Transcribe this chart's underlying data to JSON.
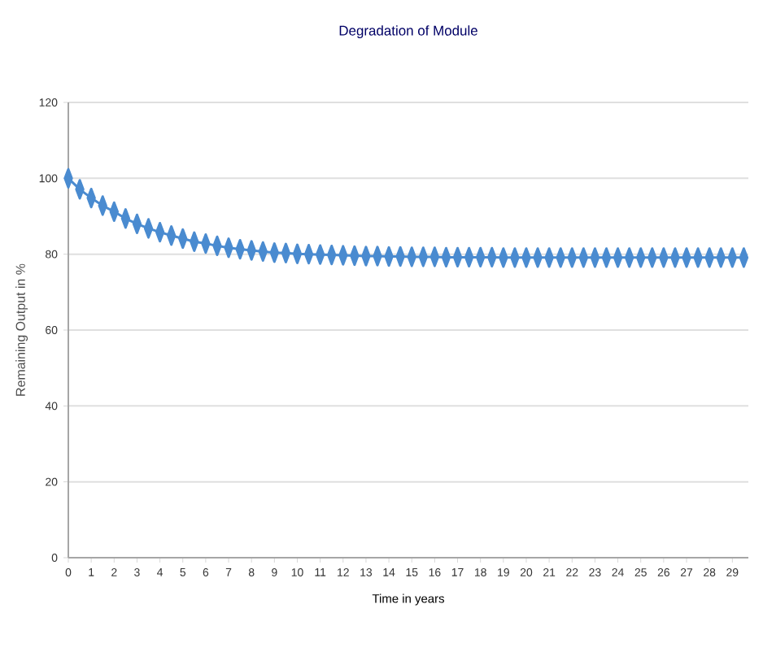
{
  "chart_data": {
    "type": "line",
    "title": "Degradation of Module",
    "xlabel": "Time in years",
    "ylabel": "Remaining Output in %",
    "x": [
      0,
      0.5,
      1,
      1.5,
      2,
      2.5,
      3,
      3.5,
      4,
      4.5,
      5,
      5.5,
      6,
      6.5,
      7,
      7.5,
      8,
      8.5,
      9,
      9.5,
      10,
      10.5,
      11,
      11.5,
      12,
      12.5,
      13,
      13.5,
      14,
      14.5,
      15,
      15.5,
      16,
      16.5,
      17,
      17.5,
      18,
      18.5,
      19,
      19.5,
      20,
      20.5,
      21,
      21.5,
      22,
      22.5,
      23,
      23.5,
      24,
      24.5,
      25,
      25.5,
      26,
      26.5,
      27,
      27.5,
      28,
      28.5,
      29,
      29.5
    ],
    "series": [
      {
        "color": "#4a8bd0",
        "values": [
          100,
          97.1,
          94.8,
          92.8,
          91.2,
          89.4,
          88.0,
          86.8,
          85.8,
          84.9,
          84.1,
          83.3,
          82.8,
          82.2,
          81.7,
          81.3,
          81.0,
          80.7,
          80.4,
          80.3,
          80.1,
          80.0,
          79.9,
          79.8,
          79.7,
          79.6,
          79.5,
          79.5,
          79.4,
          79.4,
          79.3,
          79.3,
          79.3,
          79.2,
          79.2,
          79.2,
          79.2,
          79.2,
          79.1,
          79.1,
          79.1,
          79.1,
          79.1,
          79.1,
          79.1,
          79.1,
          79.1,
          79.1,
          79.1,
          79.1,
          79.1,
          79.1,
          79.1,
          79.1,
          79.1,
          79.1,
          79.1,
          79.1,
          79.1,
          79.1
        ]
      }
    ],
    "xlim": [
      0,
      29.7
    ],
    "xticks": [
      0,
      1,
      2,
      3,
      4,
      5,
      6,
      7,
      8,
      9,
      10,
      11,
      12,
      13,
      14,
      15,
      16,
      17,
      18,
      19,
      20,
      21,
      22,
      23,
      24,
      25,
      26,
      27,
      28,
      29
    ],
    "ylim": [
      0,
      120
    ],
    "yticks": [
      0,
      20,
      40,
      60,
      80,
      100,
      120
    ],
    "grid": "y",
    "marker": "diamond",
    "line_style": "solid"
  }
}
